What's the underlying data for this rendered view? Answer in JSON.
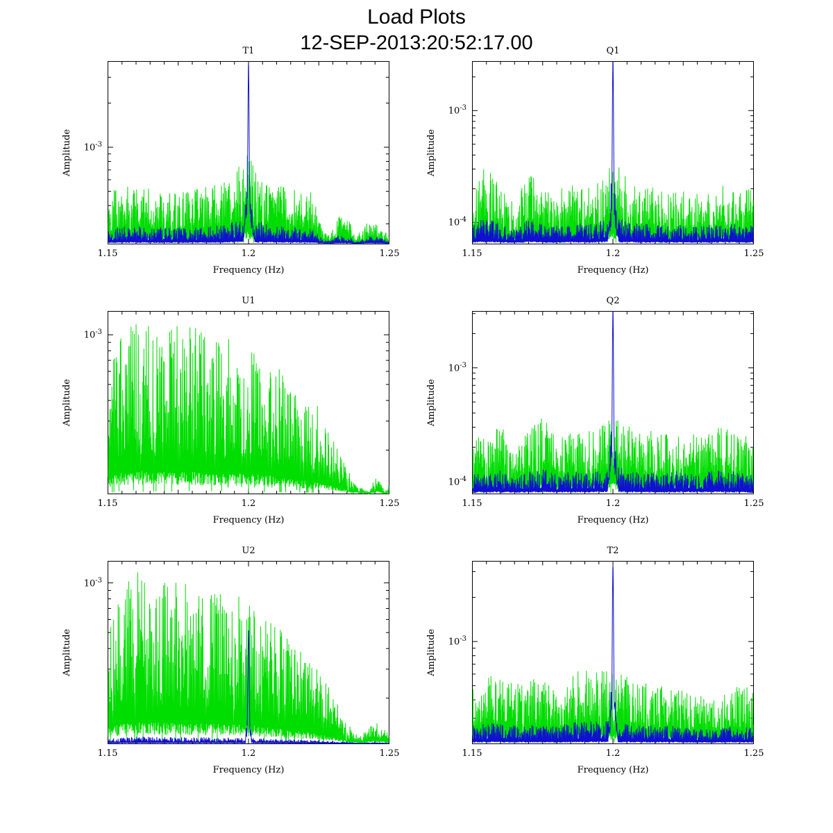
{
  "header": {
    "title": "Load Plots",
    "subtitle": "12-SEP-2013:20:52:17.00"
  },
  "colors": {
    "noise_green": "#00dd00",
    "signal_blue": "#1010d0",
    "axis": "#000000",
    "background": "#ffffff"
  },
  "chart_data": {
    "type": "line",
    "layout": "3x2-grid",
    "x_label": "Frequency (Hz)",
    "y_label": "Amplitude",
    "x_range": [
      1.15,
      1.25
    ],
    "x_ticks": [
      "1.15",
      "1.2",
      "1.25"
    ],
    "y_scale": "log",
    "peak_frequency_hz": 1.2,
    "legend": "none",
    "series_colors": {
      "noise": "#00dd00",
      "signal": "#1010d0"
    },
    "plots": [
      {
        "title": "T1",
        "seed": 101,
        "y_ticks": [
          {
            "base": "10",
            "exp": "-3",
            "frac": 0.47
          }
        ],
        "y_anchor_frac": 0.47,
        "y_decade_frac": 0.8,
        "green_envelope": [
          [
            0,
            0.3
          ],
          [
            0.1,
            0.33
          ],
          [
            0.2,
            0.3
          ],
          [
            0.3,
            0.3
          ],
          [
            0.42,
            0.35
          ],
          [
            0.47,
            0.45
          ],
          [
            0.5,
            0.5
          ],
          [
            0.53,
            0.42
          ],
          [
            0.6,
            0.33
          ],
          [
            0.68,
            0.33
          ],
          [
            0.73,
            0.28
          ],
          [
            0.76,
            0.1
          ],
          [
            0.79,
            0.05
          ],
          [
            0.82,
            0.15
          ],
          [
            0.86,
            0.14
          ],
          [
            0.88,
            0.03
          ],
          [
            0.93,
            0.13
          ],
          [
            0.97,
            0.12
          ],
          [
            1,
            0.04
          ]
        ],
        "blue": {
          "present": true,
          "peak_height": 0.98,
          "core_width": 0.0035,
          "cluster_width": 0.013,
          "cluster_height": 0.45,
          "baseline_factor": 0.3
        }
      },
      {
        "title": "Q1",
        "seed": 202,
        "y_ticks": [
          {
            "base": "10",
            "exp": "-3",
            "frac": 0.27
          },
          {
            "base": "10",
            "exp": "-4",
            "frac": 0.88
          }
        ],
        "y_anchor_frac": 0.27,
        "y_decade_frac": 0.61,
        "green_envelope": [
          [
            0,
            0.3
          ],
          [
            0.05,
            0.44
          ],
          [
            0.1,
            0.3
          ],
          [
            0.15,
            0.22
          ],
          [
            0.2,
            0.42
          ],
          [
            0.25,
            0.3
          ],
          [
            0.3,
            0.28
          ],
          [
            0.35,
            0.35
          ],
          [
            0.4,
            0.3
          ],
          [
            0.45,
            0.35
          ],
          [
            0.5,
            0.45
          ],
          [
            0.55,
            0.38
          ],
          [
            0.6,
            0.3
          ],
          [
            0.65,
            0.33
          ],
          [
            0.7,
            0.28
          ],
          [
            0.75,
            0.3
          ],
          [
            0.8,
            0.28
          ],
          [
            0.85,
            0.3
          ],
          [
            0.9,
            0.33
          ],
          [
            0.95,
            0.3
          ],
          [
            1,
            0.3
          ]
        ],
        "blue": {
          "present": true,
          "peak_height": 1.0,
          "core_width": 0.0035,
          "cluster_width": 0.012,
          "cluster_height": 0.45,
          "baseline_factor": 0.35
        }
      },
      {
        "title": "U1",
        "seed": 303,
        "y_ticks": [
          {
            "base": "10",
            "exp": "-3",
            "frac": 0.13
          }
        ],
        "y_anchor_frac": 0.13,
        "y_decade_frac": 0.9,
        "green_envelope": [
          [
            0,
            0.72
          ],
          [
            0.05,
            0.88
          ],
          [
            0.12,
            0.97
          ],
          [
            0.2,
            0.92
          ],
          [
            0.3,
            0.93
          ],
          [
            0.4,
            0.88
          ],
          [
            0.5,
            0.82
          ],
          [
            0.57,
            0.78
          ],
          [
            0.63,
            0.65
          ],
          [
            0.7,
            0.55
          ],
          [
            0.75,
            0.48
          ],
          [
            0.8,
            0.3
          ],
          [
            0.84,
            0.18
          ],
          [
            0.88,
            0.06
          ],
          [
            0.93,
            0.01
          ],
          [
            0.96,
            0.12
          ],
          [
            0.985,
            0.01
          ],
          [
            1,
            0.05
          ]
        ],
        "blue": {
          "present": false,
          "peak_height": 0,
          "core_width": 0.004,
          "cluster_width": 0.01,
          "cluster_height": 0,
          "baseline_factor": 0
        }
      },
      {
        "title": "Q2",
        "seed": 404,
        "y_ticks": [
          {
            "base": "10",
            "exp": "-3",
            "frac": 0.31
          },
          {
            "base": "10",
            "exp": "-4",
            "frac": 0.93
          }
        ],
        "y_anchor_frac": 0.31,
        "y_decade_frac": 0.62,
        "green_envelope": [
          [
            0,
            0.33
          ],
          [
            0.05,
            0.3
          ],
          [
            0.1,
            0.38
          ],
          [
            0.15,
            0.28
          ],
          [
            0.2,
            0.35
          ],
          [
            0.25,
            0.42
          ],
          [
            0.3,
            0.3
          ],
          [
            0.35,
            0.35
          ],
          [
            0.4,
            0.33
          ],
          [
            0.45,
            0.38
          ],
          [
            0.5,
            0.45
          ],
          [
            0.55,
            0.4
          ],
          [
            0.6,
            0.33
          ],
          [
            0.65,
            0.35
          ],
          [
            0.7,
            0.33
          ],
          [
            0.75,
            0.38
          ],
          [
            0.8,
            0.33
          ],
          [
            0.85,
            0.35
          ],
          [
            0.9,
            0.38
          ],
          [
            0.95,
            0.33
          ],
          [
            1,
            0.3
          ]
        ],
        "blue": {
          "present": true,
          "peak_height": 1.0,
          "core_width": 0.0035,
          "cluster_width": 0.012,
          "cluster_height": 0.5,
          "baseline_factor": 0.35
        }
      },
      {
        "title": "U2",
        "seed": 505,
        "y_ticks": [
          {
            "base": "10",
            "exp": "-3",
            "frac": 0.12
          }
        ],
        "y_anchor_frac": 0.12,
        "y_decade_frac": 0.9,
        "green_envelope": [
          [
            0,
            0.68
          ],
          [
            0.05,
            0.85
          ],
          [
            0.1,
            0.95
          ],
          [
            0.18,
            0.9
          ],
          [
            0.28,
            0.88
          ],
          [
            0.38,
            0.85
          ],
          [
            0.48,
            0.8
          ],
          [
            0.55,
            0.72
          ],
          [
            0.62,
            0.62
          ],
          [
            0.68,
            0.55
          ],
          [
            0.74,
            0.42
          ],
          [
            0.8,
            0.28
          ],
          [
            0.85,
            0.12
          ],
          [
            0.9,
            0.04
          ],
          [
            0.95,
            0.14
          ],
          [
            1,
            0.05
          ]
        ],
        "blue": {
          "present": true,
          "peak_height": 0.62,
          "core_width": 0.0035,
          "cluster_width": 0.009,
          "cluster_height": 0.3,
          "baseline_factor": 0.04
        }
      },
      {
        "title": "T2",
        "seed": 606,
        "y_ticks": [
          {
            "base": "10",
            "exp": "-3",
            "frac": 0.44
          }
        ],
        "y_anchor_frac": 0.44,
        "y_decade_frac": 0.8,
        "green_envelope": [
          [
            0,
            0.33
          ],
          [
            0.08,
            0.38
          ],
          [
            0.15,
            0.33
          ],
          [
            0.22,
            0.36
          ],
          [
            0.3,
            0.33
          ],
          [
            0.38,
            0.4
          ],
          [
            0.45,
            0.42
          ],
          [
            0.5,
            0.4
          ],
          [
            0.55,
            0.38
          ],
          [
            0.62,
            0.33
          ],
          [
            0.7,
            0.33
          ],
          [
            0.78,
            0.28
          ],
          [
            0.85,
            0.25
          ],
          [
            0.9,
            0.3
          ],
          [
            0.95,
            0.33
          ],
          [
            1,
            0.3
          ]
        ],
        "blue": {
          "present": true,
          "peak_height": 0.97,
          "core_width": 0.0035,
          "cluster_width": 0.012,
          "cluster_height": 0.4,
          "baseline_factor": 0.3
        }
      }
    ]
  }
}
